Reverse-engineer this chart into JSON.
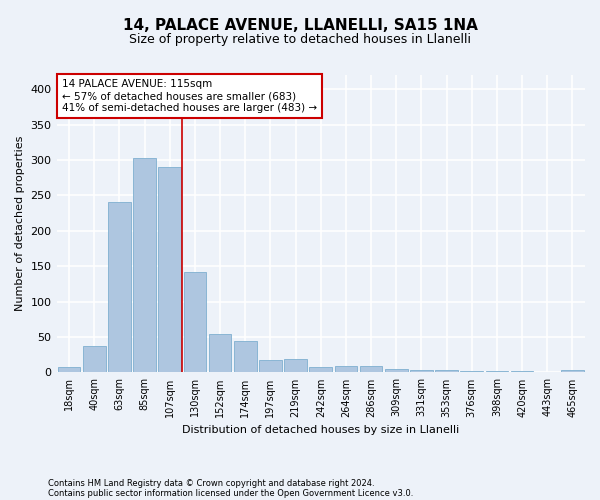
{
  "title1": "14, PALACE AVENUE, LLANELLI, SA15 1NA",
  "title2": "Size of property relative to detached houses in Llanelli",
  "xlabel": "Distribution of detached houses by size in Llanelli",
  "ylabel": "Number of detached properties",
  "categories": [
    "18sqm",
    "40sqm",
    "63sqm",
    "85sqm",
    "107sqm",
    "130sqm",
    "152sqm",
    "174sqm",
    "197sqm",
    "219sqm",
    "242sqm",
    "264sqm",
    "286sqm",
    "309sqm",
    "331sqm",
    "353sqm",
    "376sqm",
    "398sqm",
    "420sqm",
    "443sqm",
    "465sqm"
  ],
  "values": [
    7,
    38,
    240,
    303,
    290,
    142,
    54,
    45,
    17,
    19,
    8,
    9,
    9,
    5,
    3,
    3,
    2,
    2,
    2,
    1,
    4
  ],
  "bar_color": "#aec6e0",
  "bar_edge_color": "#7fafd0",
  "redline_index": 4.5,
  "annotation_line1": "14 PALACE AVENUE: 115sqm",
  "annotation_line2": "← 57% of detached houses are smaller (683)",
  "annotation_line3": "41% of semi-detached houses are larger (483) →",
  "annotation_box_color": "#ffffff",
  "annotation_box_edge": "#cc0000",
  "footnote1": "Contains HM Land Registry data © Crown copyright and database right 2024.",
  "footnote2": "Contains public sector information licensed under the Open Government Licence v3.0.",
  "ylim": [
    0,
    420
  ],
  "yticks": [
    0,
    50,
    100,
    150,
    200,
    250,
    300,
    350,
    400
  ],
  "background_color": "#edf2f9",
  "grid_color": "#ffffff",
  "title1_fontsize": 11,
  "title2_fontsize": 9,
  "tick_fontsize": 7,
  "ylabel_fontsize": 8,
  "xlabel_fontsize": 8,
  "annotation_fontsize": 7.5,
  "footnote_fontsize": 6
}
